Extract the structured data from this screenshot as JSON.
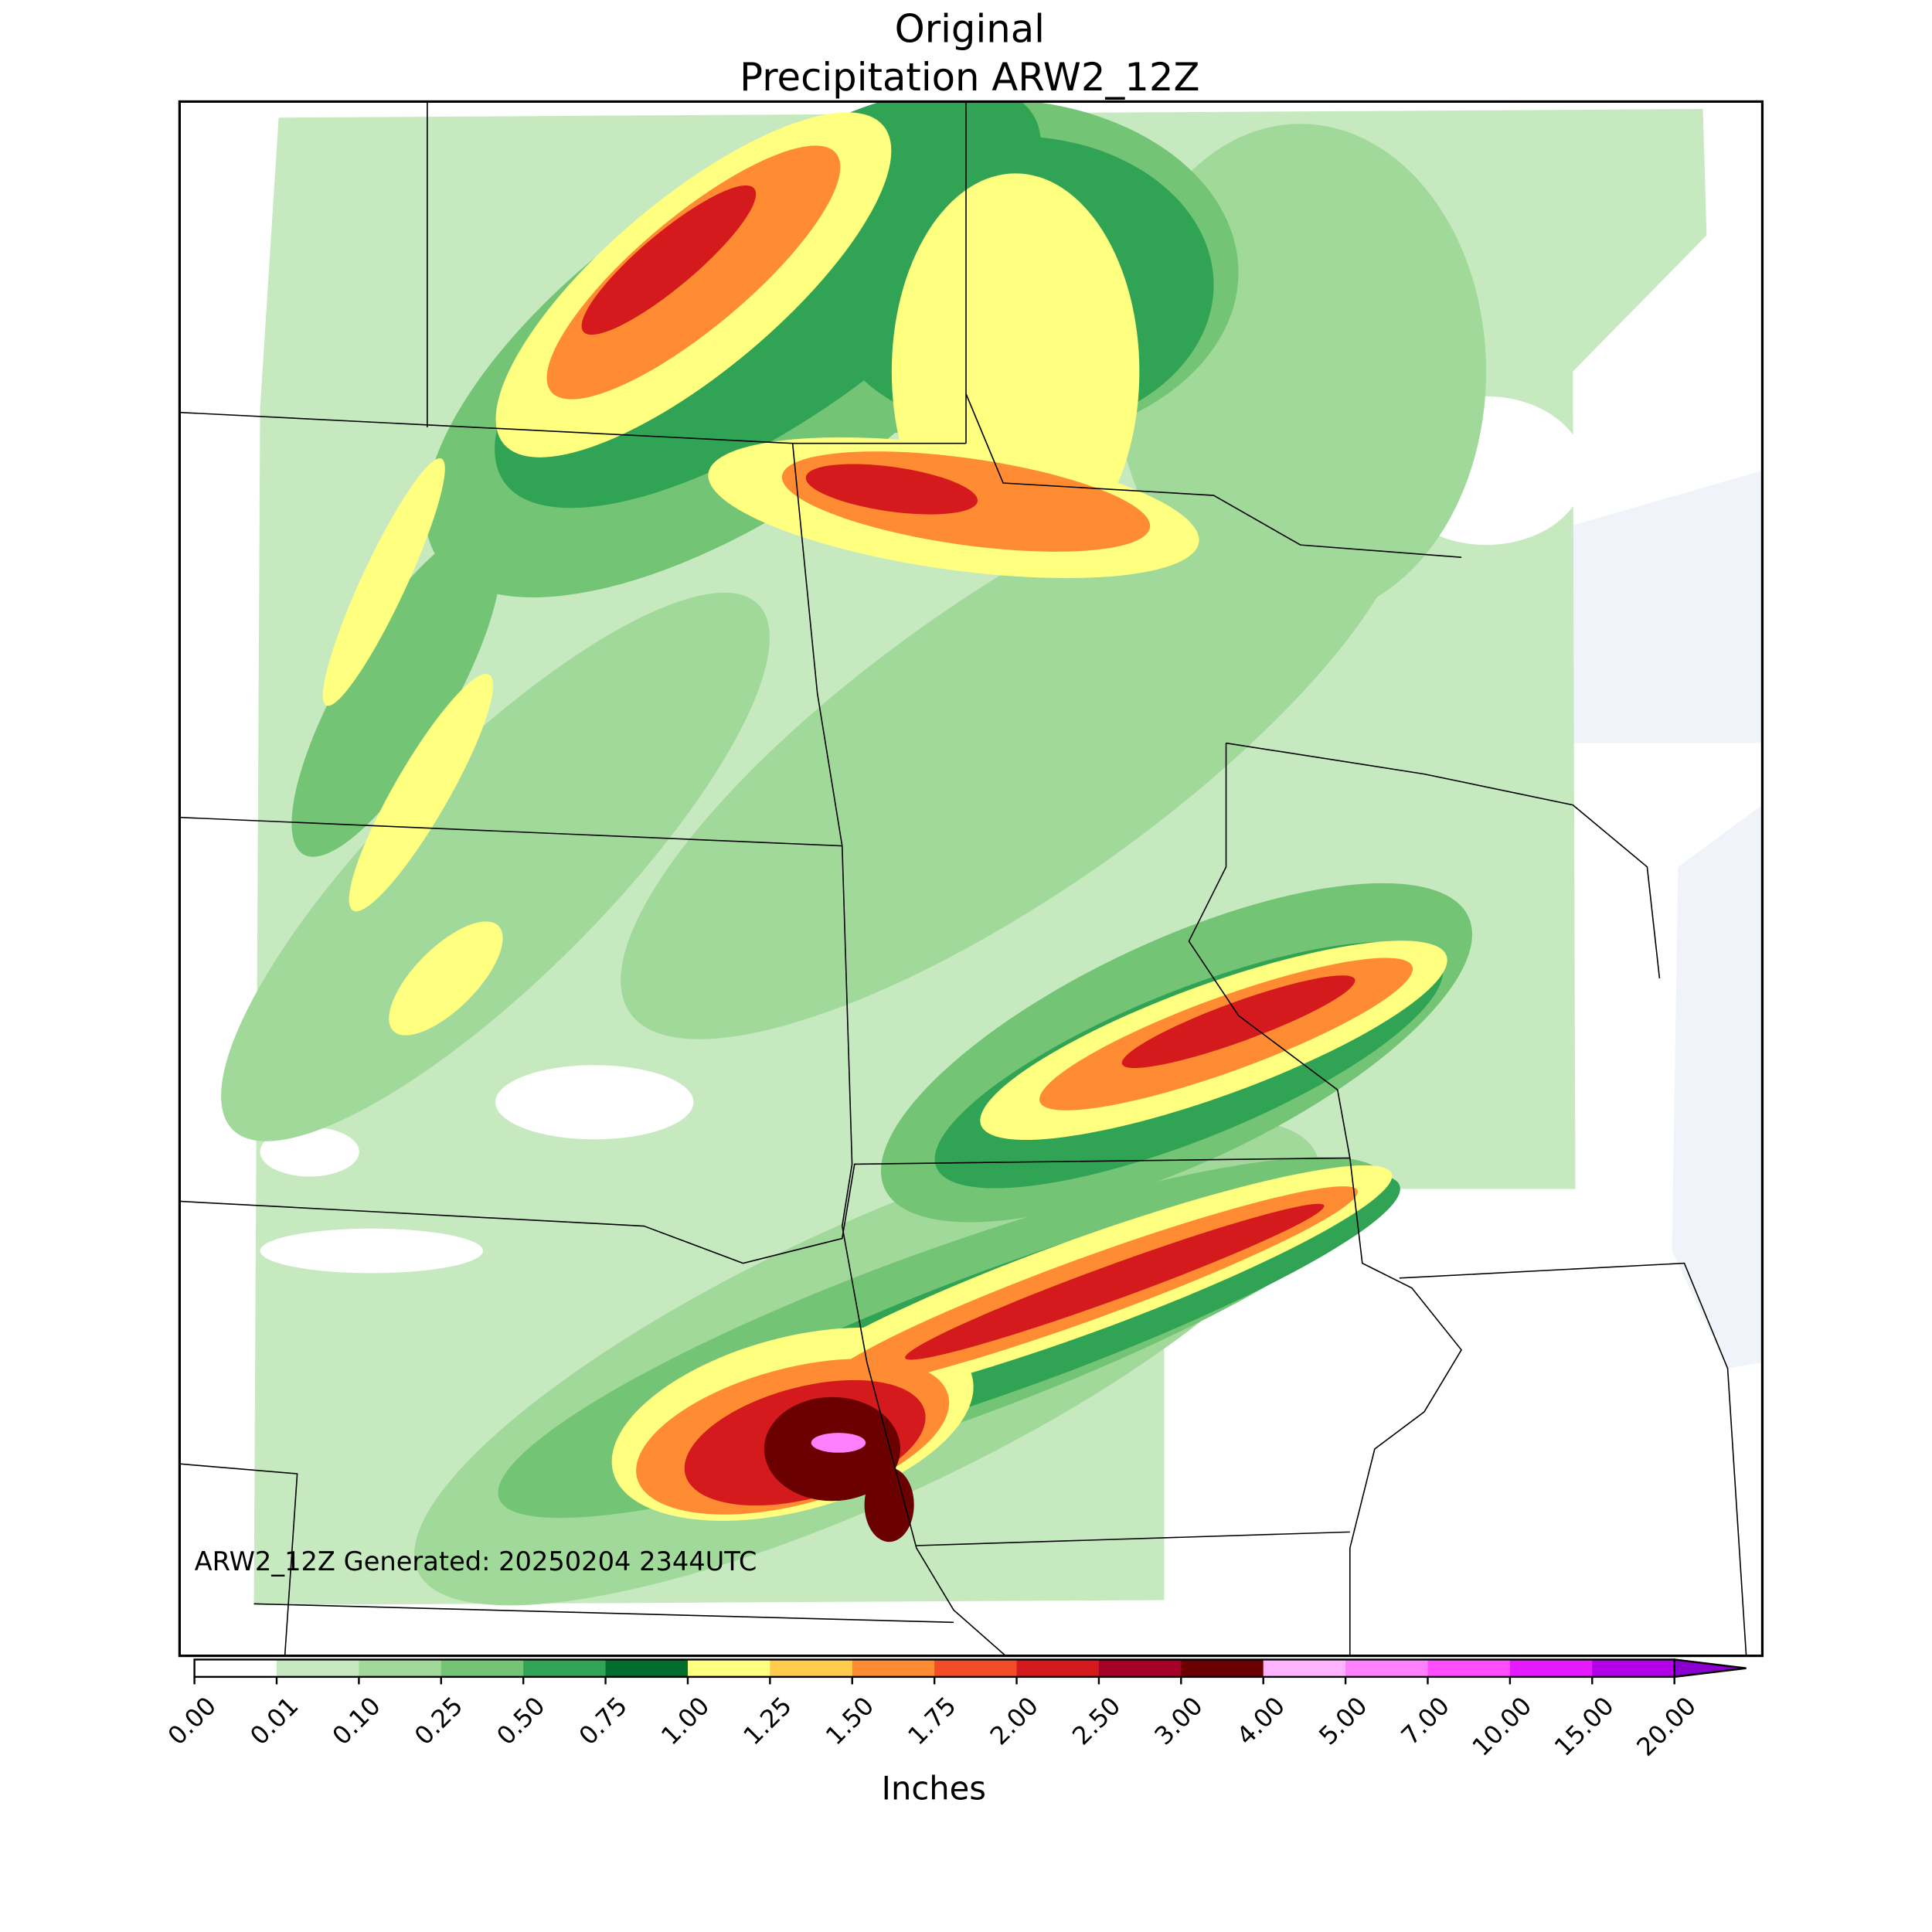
{
  "header": {
    "title": "Original",
    "subtitle": "Precipitation ARW2_12Z"
  },
  "map": {
    "annotation": "ARW2_12Z Generated: 20250204 2344UTC"
  },
  "colorbar": {
    "label": "Inches",
    "ticks": [
      {
        "value": 0,
        "label": "0.00"
      },
      {
        "value": 0.01,
        "label": "0.01"
      },
      {
        "value": 0.1,
        "label": "0.10"
      },
      {
        "value": 0.25,
        "label": "0.25"
      },
      {
        "value": 0.5,
        "label": "0.50"
      },
      {
        "value": 0.75,
        "label": "0.75"
      },
      {
        "value": 1,
        "label": "1.00"
      },
      {
        "value": 1.25,
        "label": "1.25"
      },
      {
        "value": 1.5,
        "label": "1.50"
      },
      {
        "value": 1.75,
        "label": "1.75"
      },
      {
        "value": 2,
        "label": "2.00"
      },
      {
        "value": 2.5,
        "label": "2.50"
      },
      {
        "value": 3,
        "label": "3.00"
      },
      {
        "value": 4,
        "label": "4.00"
      },
      {
        "value": 5,
        "label": "5.00"
      },
      {
        "value": 7,
        "label": "7.00"
      },
      {
        "value": 10,
        "label": "10.00"
      },
      {
        "value": 15,
        "label": "15.00"
      },
      {
        "value": 20,
        "label": "20.00"
      }
    ],
    "colors": [
      "#ffffff",
      "#c7e9c0",
      "#a1d99b",
      "#74c476",
      "#31a354",
      "#006d2c",
      "#ffff80",
      "#ffcc4d",
      "#ff8c33",
      "#f24d26",
      "#d41a1c",
      "#a50026",
      "#6b0000",
      "#ffb3ff",
      "#ff80ff",
      "#ff4dff",
      "#e61aff",
      "#b300e6"
    ],
    "extend_color": "#8b00d0"
  }
}
